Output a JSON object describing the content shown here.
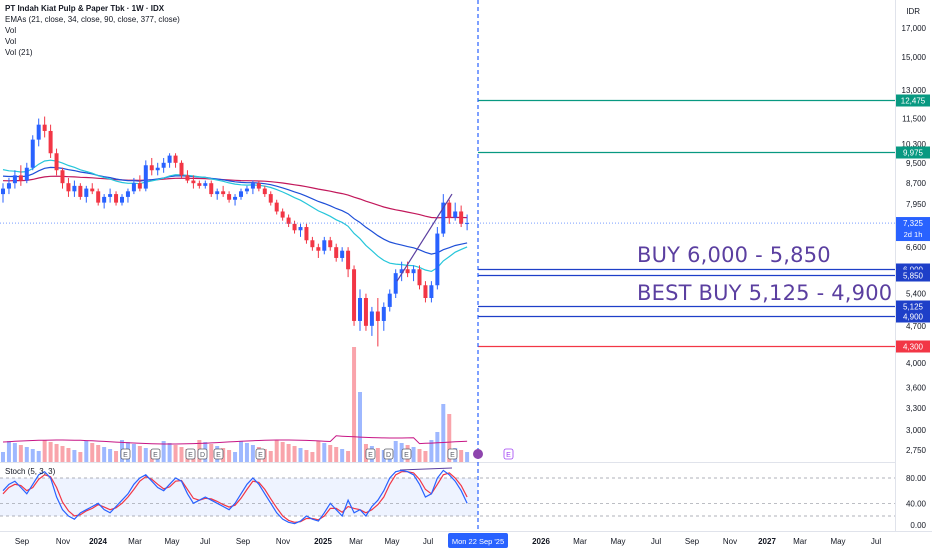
{
  "header": {
    "title": "PT Indah Kiat Pulp & Paper Tbk · 1W · IDX",
    "ema_label": "EMAs (21, close, 34, close, 90, close, 377, close)",
    "vol_label_1": "Vol",
    "vol_label_2": "Vol",
    "vol_label_3": "Vol (21)",
    "currency": "IDR"
  },
  "stoch_label": "Stoch (5, 3, 3)",
  "annotations": {
    "buy": "BUY 6,000 - 5,850",
    "best_buy": "BEST BUY 5,125 - 4,900"
  },
  "colors": {
    "up": "#2962ff",
    "down": "#f23645",
    "ema21": "#26c6da",
    "ema34": "#1e4fd8",
    "ema90": "#c2185b",
    "target_line": "#089981",
    "support_line": "#1e3fc8",
    "stop_line": "#f23645",
    "annotation_text": "#5b3fa0",
    "stoch_k": "#2962ff",
    "stoch_d": "#f23645"
  },
  "chart_data": {
    "type": "candlestick",
    "title": "PT Indah Kiat Pulp & Paper Tbk · 1W · IDX",
    "y_axis": {
      "scale": "log",
      "ticks": [
        17000,
        15000,
        13000,
        11500,
        10300,
        9500,
        8700,
        7950,
        6600,
        5400,
        4700,
        4000,
        3600,
        3300,
        3000,
        2750
      ],
      "tick_labels": [
        "17,000",
        "15,000",
        "13,000",
        "11,500",
        "10,300",
        "9,500",
        "8,700",
        "7,950",
        "6,600",
        "5,400",
        "4,700",
        "4,000",
        "3,600",
        "3,300",
        "3,000",
        "2,750"
      ]
    },
    "x_axis_labels": [
      "Sep",
      "Nov",
      "2024",
      "Mar",
      "May",
      "Jul",
      "Sep",
      "Nov",
      "2025",
      "Mar",
      "May",
      "Jul",
      "Mon 22 Sep '25",
      "2026",
      "Mar",
      "May",
      "Jul",
      "Sep",
      "Nov",
      "2027",
      "Mar",
      "May",
      "Jul"
    ],
    "current_price": {
      "value": 7325,
      "label": "7,325",
      "countdown": "2d 1h"
    },
    "horizontal_levels": [
      {
        "value": 12475,
        "label": "12,475",
        "role": "target"
      },
      {
        "value": 9975,
        "label": "9,975",
        "role": "target"
      },
      {
        "value": 6000,
        "label": "6,000",
        "role": "buy"
      },
      {
        "value": 5850,
        "label": "5,850",
        "role": "buy"
      },
      {
        "value": 5125,
        "label": "5,125",
        "role": "best-buy"
      },
      {
        "value": 4900,
        "label": "4,900",
        "role": "best-buy"
      },
      {
        "value": 4300,
        "label": "4,300",
        "role": "stop"
      }
    ],
    "candles": [
      [
        8300,
        8700,
        8000,
        8500
      ],
      [
        8500,
        8900,
        8300,
        8700
      ],
      [
        8700,
        9200,
        8500,
        9000
      ],
      [
        9000,
        9400,
        8600,
        8800
      ],
      [
        8800,
        9500,
        8700,
        9300
      ],
      [
        9300,
        10700,
        9200,
        10500
      ],
      [
        10500,
        11500,
        10200,
        11200
      ],
      [
        11200,
        11600,
        10600,
        10900
      ],
      [
        10900,
        11200,
        9700,
        9900
      ],
      [
        9900,
        10100,
        9000,
        9200
      ],
      [
        9200,
        9300,
        8500,
        8700
      ],
      [
        8700,
        8900,
        8200,
        8400
      ],
      [
        8400,
        8800,
        8200,
        8600
      ],
      [
        8600,
        8700,
        8100,
        8200
      ],
      [
        8200,
        8600,
        8000,
        8500
      ],
      [
        8500,
        8700,
        8300,
        8400
      ],
      [
        8400,
        8500,
        7900,
        8000
      ],
      [
        8000,
        8300,
        7800,
        8200
      ],
      [
        8200,
        8500,
        8000,
        8300
      ],
      [
        8300,
        8400,
        7900,
        8000
      ],
      [
        8000,
        8300,
        7900,
        8200
      ],
      [
        8200,
        8500,
        8000,
        8400
      ],
      [
        8400,
        8900,
        8300,
        8700
      ],
      [
        8700,
        9000,
        8400,
        8500
      ],
      [
        8500,
        9600,
        8400,
        9400
      ],
      [
        9400,
        9700,
        9000,
        9200
      ],
      [
        9200,
        9500,
        9000,
        9300
      ],
      [
        9300,
        9700,
        9100,
        9500
      ],
      [
        9500,
        9900,
        9300,
        9800
      ],
      [
        9800,
        9900,
        9300,
        9500
      ],
      [
        9500,
        9600,
        8900,
        9000
      ],
      [
        9000,
        9200,
        8700,
        8800
      ],
      [
        8800,
        9000,
        8500,
        8700
      ],
      [
        8700,
        8800,
        8500,
        8600
      ],
      [
        8600,
        8800,
        8500,
        8700
      ],
      [
        8700,
        8800,
        8200,
        8300
      ],
      [
        8300,
        8500,
        8100,
        8400
      ],
      [
        8400,
        8600,
        8200,
        8300
      ],
      [
        8300,
        8400,
        8000,
        8100
      ],
      [
        8100,
        8300,
        7900,
        8200
      ],
      [
        8200,
        8500,
        8100,
        8400
      ],
      [
        8400,
        8600,
        8300,
        8500
      ],
      [
        8500,
        8800,
        8300,
        8700
      ],
      [
        8700,
        8800,
        8400,
        8500
      ],
      [
        8500,
        8600,
        8200,
        8300
      ],
      [
        8300,
        8400,
        7900,
        8000
      ],
      [
        8000,
        8100,
        7600,
        7700
      ],
      [
        7700,
        7800,
        7400,
        7500
      ],
      [
        7500,
        7600,
        7200,
        7300
      ],
      [
        7300,
        7400,
        7000,
        7100
      ],
      [
        7100,
        7300,
        6900,
        7200
      ],
      [
        7200,
        7300,
        6700,
        6800
      ],
      [
        6800,
        6900,
        6500,
        6600
      ],
      [
        6600,
        6700,
        6300,
        6500
      ],
      [
        6500,
        6900,
        6400,
        6800
      ],
      [
        6800,
        6900,
        6500,
        6600
      ],
      [
        6600,
        6700,
        6200,
        6300
      ],
      [
        6300,
        6600,
        6200,
        6500
      ],
      [
        6500,
        6600,
        5800,
        6000
      ],
      [
        6000,
        6100,
        4700,
        4800
      ],
      [
        4800,
        5500,
        4600,
        5300
      ],
      [
        5300,
        5400,
        4600,
        4700
      ],
      [
        4700,
        5100,
        4500,
        5000
      ],
      [
        5000,
        5300,
        4300,
        4800
      ],
      [
        4800,
        5200,
        4600,
        5100
      ],
      [
        5100,
        5500,
        5000,
        5400
      ],
      [
        5400,
        6000,
        5300,
        5900
      ],
      [
        5900,
        6200,
        5700,
        6000
      ],
      [
        6000,
        6200,
        5800,
        5900
      ],
      [
        5900,
        6100,
        5700,
        6000
      ],
      [
        6000,
        6100,
        5500,
        5600
      ],
      [
        5600,
        5700,
        5200,
        5300
      ],
      [
        5300,
        5700,
        5200,
        5600
      ],
      [
        5600,
        7200,
        5500,
        7000
      ],
      [
        7000,
        8300,
        6900,
        8000
      ],
      [
        8000,
        8100,
        7300,
        7500
      ],
      [
        7500,
        8000,
        7400,
        7700
      ],
      [
        7700,
        7900,
        7200,
        7300
      ],
      [
        7300,
        7600,
        7100,
        7325
      ]
    ],
    "volume_note": "weekly volume bars, colored by candle direction",
    "stochastic": {
      "label": "Stoch (5, 3, 3)",
      "levels": [
        80,
        40,
        20
      ],
      "tick_labels": [
        "80.00",
        "40.00",
        "0.00"
      ],
      "k": [
        60,
        70,
        75,
        65,
        55,
        70,
        85,
        90,
        80,
        50,
        30,
        20,
        15,
        25,
        30,
        35,
        40,
        30,
        25,
        35,
        45,
        55,
        70,
        80,
        85,
        75,
        65,
        60,
        70,
        80,
        75,
        55,
        40,
        45,
        50,
        45,
        40,
        35,
        30,
        40,
        55,
        70,
        80,
        70,
        55,
        40,
        25,
        15,
        10,
        8,
        12,
        20,
        15,
        12,
        25,
        40,
        30,
        20,
        45,
        25,
        30,
        20,
        35,
        45,
        60,
        80,
        90,
        92,
        90,
        85,
        70,
        50,
        55,
        80,
        92,
        85,
        75,
        60,
        40
      ],
      "d": [
        55,
        65,
        70,
        68,
        60,
        65,
        78,
        85,
        82,
        65,
        42,
        28,
        20,
        22,
        28,
        32,
        38,
        34,
        30,
        33,
        40,
        50,
        62,
        75,
        82,
        78,
        70,
        63,
        66,
        75,
        76,
        62,
        48,
        45,
        48,
        47,
        43,
        38,
        34,
        37,
        48,
        62,
        75,
        73,
        62,
        47,
        33,
        20,
        13,
        10,
        11,
        16,
        16,
        14,
        20,
        32,
        32,
        26,
        35,
        32,
        30,
        25,
        30,
        38,
        50,
        70,
        85,
        90,
        90,
        88,
        78,
        62,
        55,
        70,
        85,
        88,
        80,
        68,
        50
      ]
    }
  }
}
